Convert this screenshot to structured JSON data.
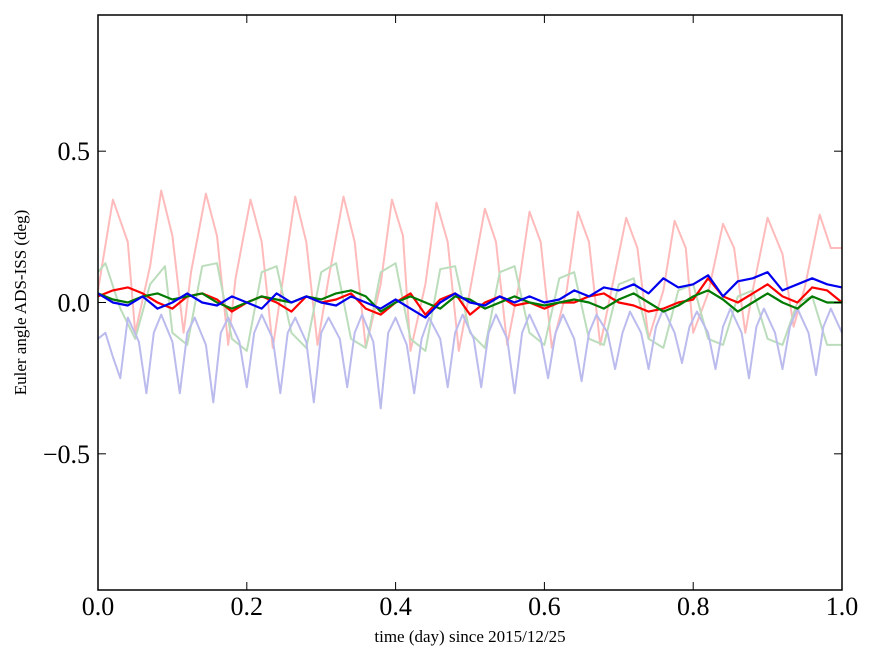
{
  "chart_data": {
    "type": "line",
    "title": "",
    "xlabel": "time (day) since 2015/12/25",
    "ylabel": "Euler angle ADS-ISS (deg)",
    "xlim": [
      0.0,
      1.0
    ],
    "ylim": [
      -0.95,
      0.95
    ],
    "grid": false,
    "x_ticks": [
      0.0,
      0.2,
      0.4,
      0.6,
      0.8,
      1.0
    ],
    "x_tick_labels": [
      "0.0",
      "0.2",
      "0.4",
      "0.6",
      "0.8",
      "1.0"
    ],
    "y_ticks": [
      -0.5,
      0.0,
      0.5
    ],
    "y_tick_labels": [
      "−0.5",
      "0.0",
      "0.5"
    ],
    "series": [
      {
        "color": "#ffbbbb",
        "style": "light",
        "x": [
          0.0,
          0.02,
          0.04,
          0.05,
          0.07,
          0.085,
          0.1,
          0.115,
          0.125,
          0.145,
          0.16,
          0.175,
          0.185,
          0.205,
          0.22,
          0.235,
          0.25,
          0.265,
          0.28,
          0.295,
          0.31,
          0.33,
          0.345,
          0.36,
          0.38,
          0.395,
          0.41,
          0.42,
          0.44,
          0.455,
          0.47,
          0.485,
          0.5,
          0.52,
          0.535,
          0.55,
          0.565,
          0.58,
          0.595,
          0.61,
          0.63,
          0.645,
          0.66,
          0.675,
          0.69,
          0.71,
          0.725,
          0.74,
          0.76,
          0.775,
          0.79,
          0.8,
          0.82,
          0.84,
          0.855,
          0.87,
          0.88,
          0.9,
          0.92,
          0.935,
          0.95,
          0.97,
          0.985,
          1.0
        ],
        "y": [
          0.04,
          0.34,
          0.2,
          -0.1,
          0.12,
          0.37,
          0.22,
          -0.1,
          0.1,
          0.36,
          0.22,
          -0.14,
          0.08,
          0.34,
          0.2,
          -0.15,
          0.1,
          0.35,
          0.2,
          -0.14,
          0.08,
          0.35,
          0.2,
          -0.15,
          0.06,
          0.34,
          0.22,
          -0.16,
          0.06,
          0.33,
          0.2,
          -0.16,
          0.04,
          0.31,
          0.2,
          -0.14,
          0.05,
          0.3,
          0.2,
          -0.15,
          0.04,
          0.3,
          0.2,
          -0.14,
          0.04,
          0.28,
          0.18,
          -0.12,
          0.04,
          0.27,
          0.18,
          -0.1,
          0.03,
          0.26,
          0.18,
          -0.1,
          0.04,
          0.28,
          0.16,
          -0.08,
          0.05,
          0.29,
          0.18,
          0.18
        ]
      },
      {
        "color": "#bbddbb",
        "style": "light",
        "x": [
          0.0,
          0.01,
          0.03,
          0.05,
          0.07,
          0.09,
          0.1,
          0.12,
          0.14,
          0.16,
          0.18,
          0.2,
          0.22,
          0.24,
          0.26,
          0.28,
          0.3,
          0.32,
          0.34,
          0.36,
          0.38,
          0.4,
          0.42,
          0.44,
          0.46,
          0.48,
          0.5,
          0.52,
          0.54,
          0.56,
          0.58,
          0.6,
          0.62,
          0.64,
          0.66,
          0.68,
          0.7,
          0.72,
          0.74,
          0.76,
          0.78,
          0.8,
          0.82,
          0.84,
          0.86,
          0.88,
          0.9,
          0.92,
          0.94,
          0.96,
          0.98,
          1.0
        ],
        "y": [
          0.1,
          0.13,
          -0.02,
          -0.12,
          0.06,
          0.12,
          -0.1,
          -0.14,
          0.12,
          0.13,
          -0.12,
          -0.16,
          0.1,
          0.12,
          -0.1,
          -0.15,
          0.1,
          0.13,
          -0.12,
          -0.15,
          0.1,
          0.13,
          -0.12,
          -0.16,
          0.11,
          0.12,
          -0.1,
          -0.15,
          0.1,
          0.12,
          -0.1,
          -0.14,
          0.08,
          0.1,
          -0.12,
          -0.14,
          0.06,
          0.08,
          -0.12,
          -0.15,
          0.04,
          0.06,
          -0.12,
          -0.14,
          0.02,
          0.04,
          -0.12,
          -0.14,
          0.0,
          0.02,
          -0.14,
          -0.14
        ]
      },
      {
        "color": "#bbbbee",
        "style": "light",
        "x": [
          0.0,
          0.01,
          0.02,
          0.03,
          0.04,
          0.055,
          0.065,
          0.075,
          0.085,
          0.1,
          0.11,
          0.12,
          0.13,
          0.145,
          0.155,
          0.165,
          0.175,
          0.19,
          0.2,
          0.21,
          0.22,
          0.235,
          0.245,
          0.255,
          0.265,
          0.28,
          0.29,
          0.3,
          0.31,
          0.325,
          0.335,
          0.345,
          0.355,
          0.37,
          0.38,
          0.39,
          0.4,
          0.415,
          0.425,
          0.435,
          0.445,
          0.46,
          0.47,
          0.48,
          0.49,
          0.505,
          0.515,
          0.525,
          0.535,
          0.55,
          0.56,
          0.57,
          0.58,
          0.595,
          0.605,
          0.615,
          0.625,
          0.64,
          0.65,
          0.66,
          0.67,
          0.685,
          0.695,
          0.705,
          0.715,
          0.73,
          0.74,
          0.75,
          0.76,
          0.775,
          0.785,
          0.795,
          0.805,
          0.82,
          0.83,
          0.84,
          0.85,
          0.865,
          0.875,
          0.885,
          0.895,
          0.91,
          0.92,
          0.93,
          0.94,
          0.955,
          0.965,
          0.975,
          0.985,
          1.0
        ],
        "y": [
          -0.12,
          -0.1,
          -0.18,
          -0.25,
          -0.05,
          -0.13,
          -0.3,
          -0.1,
          -0.04,
          -0.13,
          -0.3,
          -0.1,
          -0.05,
          -0.14,
          -0.33,
          -0.1,
          -0.05,
          -0.13,
          -0.28,
          -0.1,
          -0.04,
          -0.12,
          -0.3,
          -0.1,
          -0.05,
          -0.13,
          -0.33,
          -0.1,
          -0.05,
          -0.12,
          -0.28,
          -0.1,
          -0.04,
          -0.13,
          -0.35,
          -0.1,
          -0.05,
          -0.14,
          -0.3,
          -0.12,
          -0.05,
          -0.12,
          -0.28,
          -0.1,
          -0.04,
          -0.12,
          -0.28,
          -0.1,
          -0.04,
          -0.12,
          -0.3,
          -0.1,
          -0.04,
          -0.12,
          -0.25,
          -0.1,
          -0.04,
          -0.12,
          -0.26,
          -0.1,
          -0.04,
          -0.1,
          -0.22,
          -0.1,
          -0.03,
          -0.1,
          -0.22,
          -0.08,
          -0.02,
          -0.1,
          -0.2,
          -0.08,
          -0.03,
          -0.1,
          -0.22,
          -0.08,
          -0.02,
          -0.1,
          -0.25,
          -0.08,
          -0.02,
          -0.1,
          -0.22,
          -0.08,
          -0.02,
          -0.1,
          -0.24,
          -0.08,
          -0.02,
          -0.1
        ]
      },
      {
        "color": "#ff0000",
        "style": "bold",
        "x": [
          0.0,
          0.02,
          0.04,
          0.06,
          0.08,
          0.1,
          0.12,
          0.14,
          0.16,
          0.18,
          0.2,
          0.22,
          0.24,
          0.26,
          0.28,
          0.3,
          0.32,
          0.34,
          0.36,
          0.38,
          0.4,
          0.42,
          0.44,
          0.46,
          0.48,
          0.5,
          0.52,
          0.54,
          0.56,
          0.58,
          0.6,
          0.62,
          0.64,
          0.66,
          0.68,
          0.7,
          0.72,
          0.74,
          0.76,
          0.78,
          0.8,
          0.82,
          0.84,
          0.86,
          0.88,
          0.9,
          0.92,
          0.94,
          0.96,
          0.98,
          1.0
        ],
        "y": [
          0.02,
          0.04,
          0.05,
          0.03,
          0.0,
          -0.02,
          0.02,
          0.03,
          0.01,
          -0.03,
          0.0,
          0.02,
          0.0,
          -0.03,
          0.02,
          0.0,
          0.01,
          0.03,
          -0.02,
          -0.04,
          0.0,
          0.03,
          -0.04,
          0.01,
          0.03,
          -0.04,
          0.0,
          0.02,
          -0.01,
          0.0,
          -0.02,
          0.0,
          0.0,
          0.02,
          0.03,
          0.0,
          -0.01,
          -0.03,
          -0.02,
          0.0,
          0.01,
          0.08,
          0.02,
          0.0,
          0.03,
          0.06,
          0.02,
          0.0,
          0.05,
          0.04,
          0.0
        ]
      },
      {
        "color": "#007a00",
        "style": "bold",
        "x": [
          0.0,
          0.02,
          0.04,
          0.06,
          0.08,
          0.1,
          0.12,
          0.14,
          0.16,
          0.18,
          0.2,
          0.22,
          0.24,
          0.26,
          0.28,
          0.3,
          0.32,
          0.34,
          0.36,
          0.38,
          0.4,
          0.42,
          0.44,
          0.46,
          0.48,
          0.5,
          0.52,
          0.54,
          0.56,
          0.58,
          0.6,
          0.62,
          0.64,
          0.66,
          0.68,
          0.7,
          0.72,
          0.74,
          0.76,
          0.78,
          0.8,
          0.82,
          0.84,
          0.86,
          0.88,
          0.9,
          0.92,
          0.94,
          0.96,
          0.98,
          1.0
        ],
        "y": [
          0.03,
          0.01,
          0.0,
          0.02,
          0.03,
          0.01,
          0.02,
          0.03,
          0.0,
          -0.02,
          0.0,
          0.02,
          0.01,
          0.0,
          0.02,
          0.01,
          0.03,
          0.04,
          0.02,
          -0.03,
          0.0,
          0.02,
          0.0,
          -0.02,
          0.02,
          0.01,
          -0.02,
          0.0,
          0.02,
          0.0,
          -0.01,
          0.0,
          0.01,
          0.0,
          -0.02,
          0.01,
          0.03,
          0.0,
          -0.03,
          -0.01,
          0.02,
          0.04,
          0.01,
          -0.03,
          0.0,
          0.03,
          0.0,
          -0.02,
          0.02,
          0.0,
          0.0
        ]
      },
      {
        "color": "#0000ee",
        "style": "bold",
        "x": [
          0.0,
          0.02,
          0.04,
          0.06,
          0.08,
          0.1,
          0.12,
          0.14,
          0.16,
          0.18,
          0.2,
          0.22,
          0.24,
          0.26,
          0.28,
          0.3,
          0.32,
          0.34,
          0.36,
          0.38,
          0.4,
          0.42,
          0.44,
          0.46,
          0.48,
          0.5,
          0.52,
          0.54,
          0.56,
          0.58,
          0.6,
          0.62,
          0.64,
          0.66,
          0.68,
          0.7,
          0.72,
          0.74,
          0.76,
          0.78,
          0.8,
          0.82,
          0.84,
          0.86,
          0.88,
          0.9,
          0.92,
          0.94,
          0.96,
          0.98,
          1.0
        ],
        "y": [
          0.03,
          0.0,
          -0.01,
          0.02,
          -0.02,
          0.0,
          0.03,
          0.0,
          -0.01,
          0.02,
          0.0,
          -0.02,
          0.03,
          0.0,
          0.02,
          0.0,
          -0.01,
          0.02,
          0.0,
          -0.02,
          0.01,
          -0.02,
          -0.05,
          0.0,
          0.03,
          0.0,
          -0.01,
          0.02,
          0.0,
          0.02,
          0.0,
          0.01,
          0.04,
          0.02,
          0.05,
          0.04,
          0.06,
          0.03,
          0.08,
          0.05,
          0.06,
          0.09,
          0.02,
          0.07,
          0.08,
          0.1,
          0.04,
          0.06,
          0.08,
          0.06,
          0.05
        ]
      }
    ]
  }
}
